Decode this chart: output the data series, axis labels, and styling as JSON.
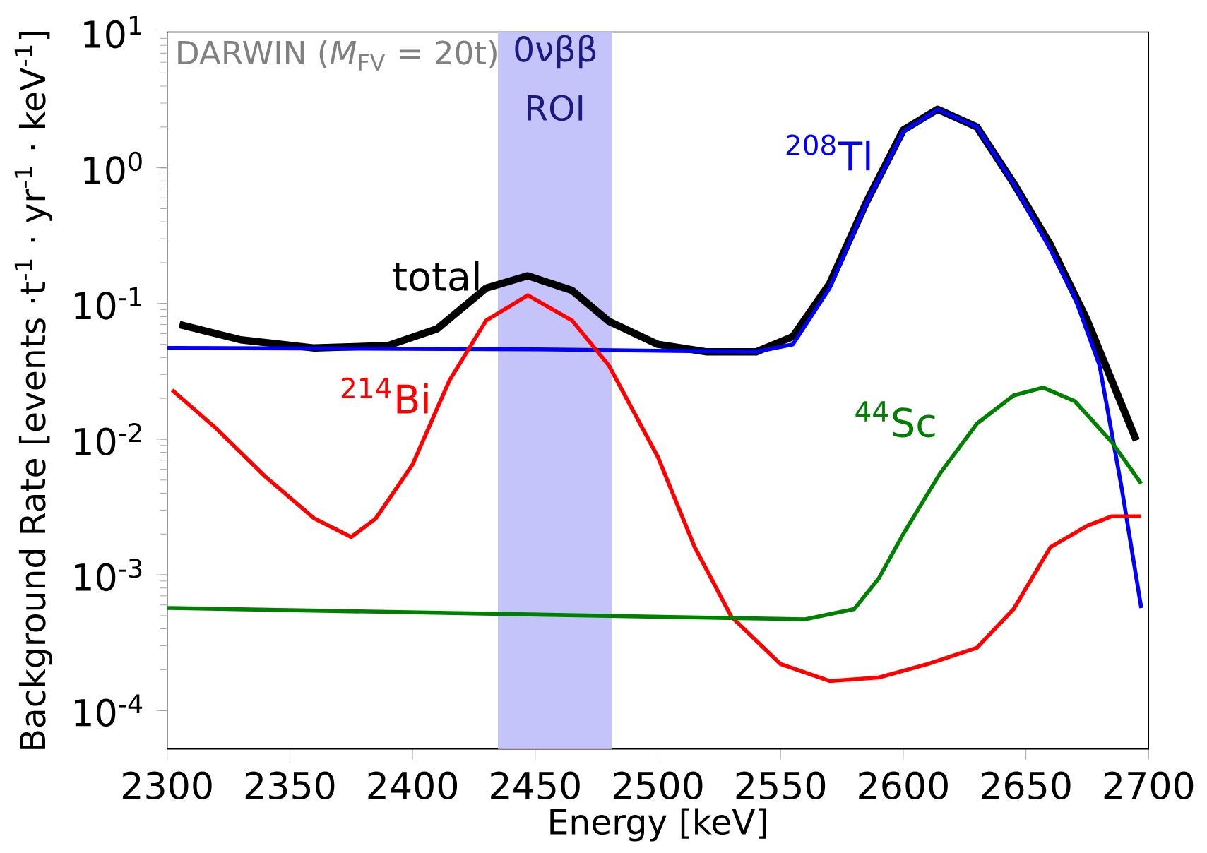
{
  "chart_data": {
    "type": "line",
    "xlabel": "Energy [keV]",
    "ylabel": "Background Rate [events ·t$^{-1}$ · yr$^{-1}$ · keV$^{-1}$]",
    "log": "y",
    "grid": false,
    "marker": "none",
    "line_style": "solid",
    "xlim": [
      2300,
      2700
    ],
    "xticks": [
      2300,
      2350,
      2400,
      2450,
      2500,
      2550,
      2600,
      2650,
      2700
    ],
    "ylim": [
      5.2e-05,
      10
    ],
    "yticks": [
      {
        "value": 0.0001,
        "label": "10$^{-4}$"
      },
      {
        "value": 0.001,
        "label": "10$^{-3}$"
      },
      {
        "value": 0.01,
        "label": "10$^{-2}$"
      },
      {
        "value": 0.1,
        "label": "10$^{-1}$"
      },
      {
        "value": 1,
        "label": "10$^{0}$"
      },
      {
        "value": 10,
        "label": "10$^{1}$"
      }
    ],
    "bands": [
      {
        "axis": "x",
        "from": 2435,
        "to": 2481,
        "label": "0νββ ROI",
        "color": "#c4c4fa"
      }
    ],
    "annotations": [
      "DARWIN (*M*$_{FV}$ = 20t)"
    ],
    "series": [
      {
        "name": "total",
        "color": "#000000",
        "x": [
          2305,
          2330,
          2360,
          2390,
          2410,
          2430,
          2447,
          2465,
          2480,
          2500,
          2520,
          2540,
          2555,
          2570,
          2585,
          2600,
          2614,
          2630,
          2645,
          2660,
          2675,
          2685,
          2695
        ],
        "values": [
          0.07,
          0.054,
          0.047,
          0.049,
          0.065,
          0.13,
          0.16,
          0.125,
          0.074,
          0.05,
          0.044,
          0.044,
          0.057,
          0.14,
          0.56,
          1.9,
          2.7,
          2.0,
          0.77,
          0.27,
          0.075,
          0.027,
          0.0098
        ]
      },
      {
        "name": "$^{208}$Tl",
        "color": "#0000ff",
        "x": [
          2300,
          2450,
          2540,
          2555,
          2570,
          2585,
          2600,
          2614,
          2630,
          2645,
          2660,
          2670,
          2680,
          2689,
          2697
        ],
        "values": [
          0.047,
          0.046,
          0.044,
          0.05,
          0.13,
          0.55,
          1.85,
          2.7,
          2.0,
          0.76,
          0.25,
          0.11,
          0.035,
          0.0044,
          0.00057
        ]
      },
      {
        "name": "$^{214}$Bi",
        "color": "#ff0000",
        "x": [
          2302,
          2320,
          2340,
          2360,
          2375,
          2385,
          2400,
          2415,
          2430,
          2447,
          2465,
          2480,
          2500,
          2515,
          2530,
          2550,
          2570,
          2590,
          2610,
          2630,
          2645,
          2660,
          2675,
          2685,
          2697
        ],
        "values": [
          0.023,
          0.012,
          0.0053,
          0.0026,
          0.0019,
          0.0026,
          0.0065,
          0.027,
          0.075,
          0.115,
          0.075,
          0.035,
          0.0074,
          0.0016,
          0.00049,
          0.00022,
          0.000165,
          0.000175,
          0.00022,
          0.00029,
          0.00056,
          0.0016,
          0.0023,
          0.0027,
          0.0027
        ]
      },
      {
        "name": "$^{44}$Sc",
        "color": "#008000",
        "x": [
          2300,
          2560,
          2580,
          2590,
          2600,
          2615,
          2630,
          2645,
          2657,
          2670,
          2685,
          2697
        ],
        "values": [
          0.00057,
          0.00047,
          0.00056,
          0.00094,
          0.002,
          0.0056,
          0.013,
          0.021,
          0.024,
          0.019,
          0.0095,
          0.0047
        ]
      }
    ]
  }
}
